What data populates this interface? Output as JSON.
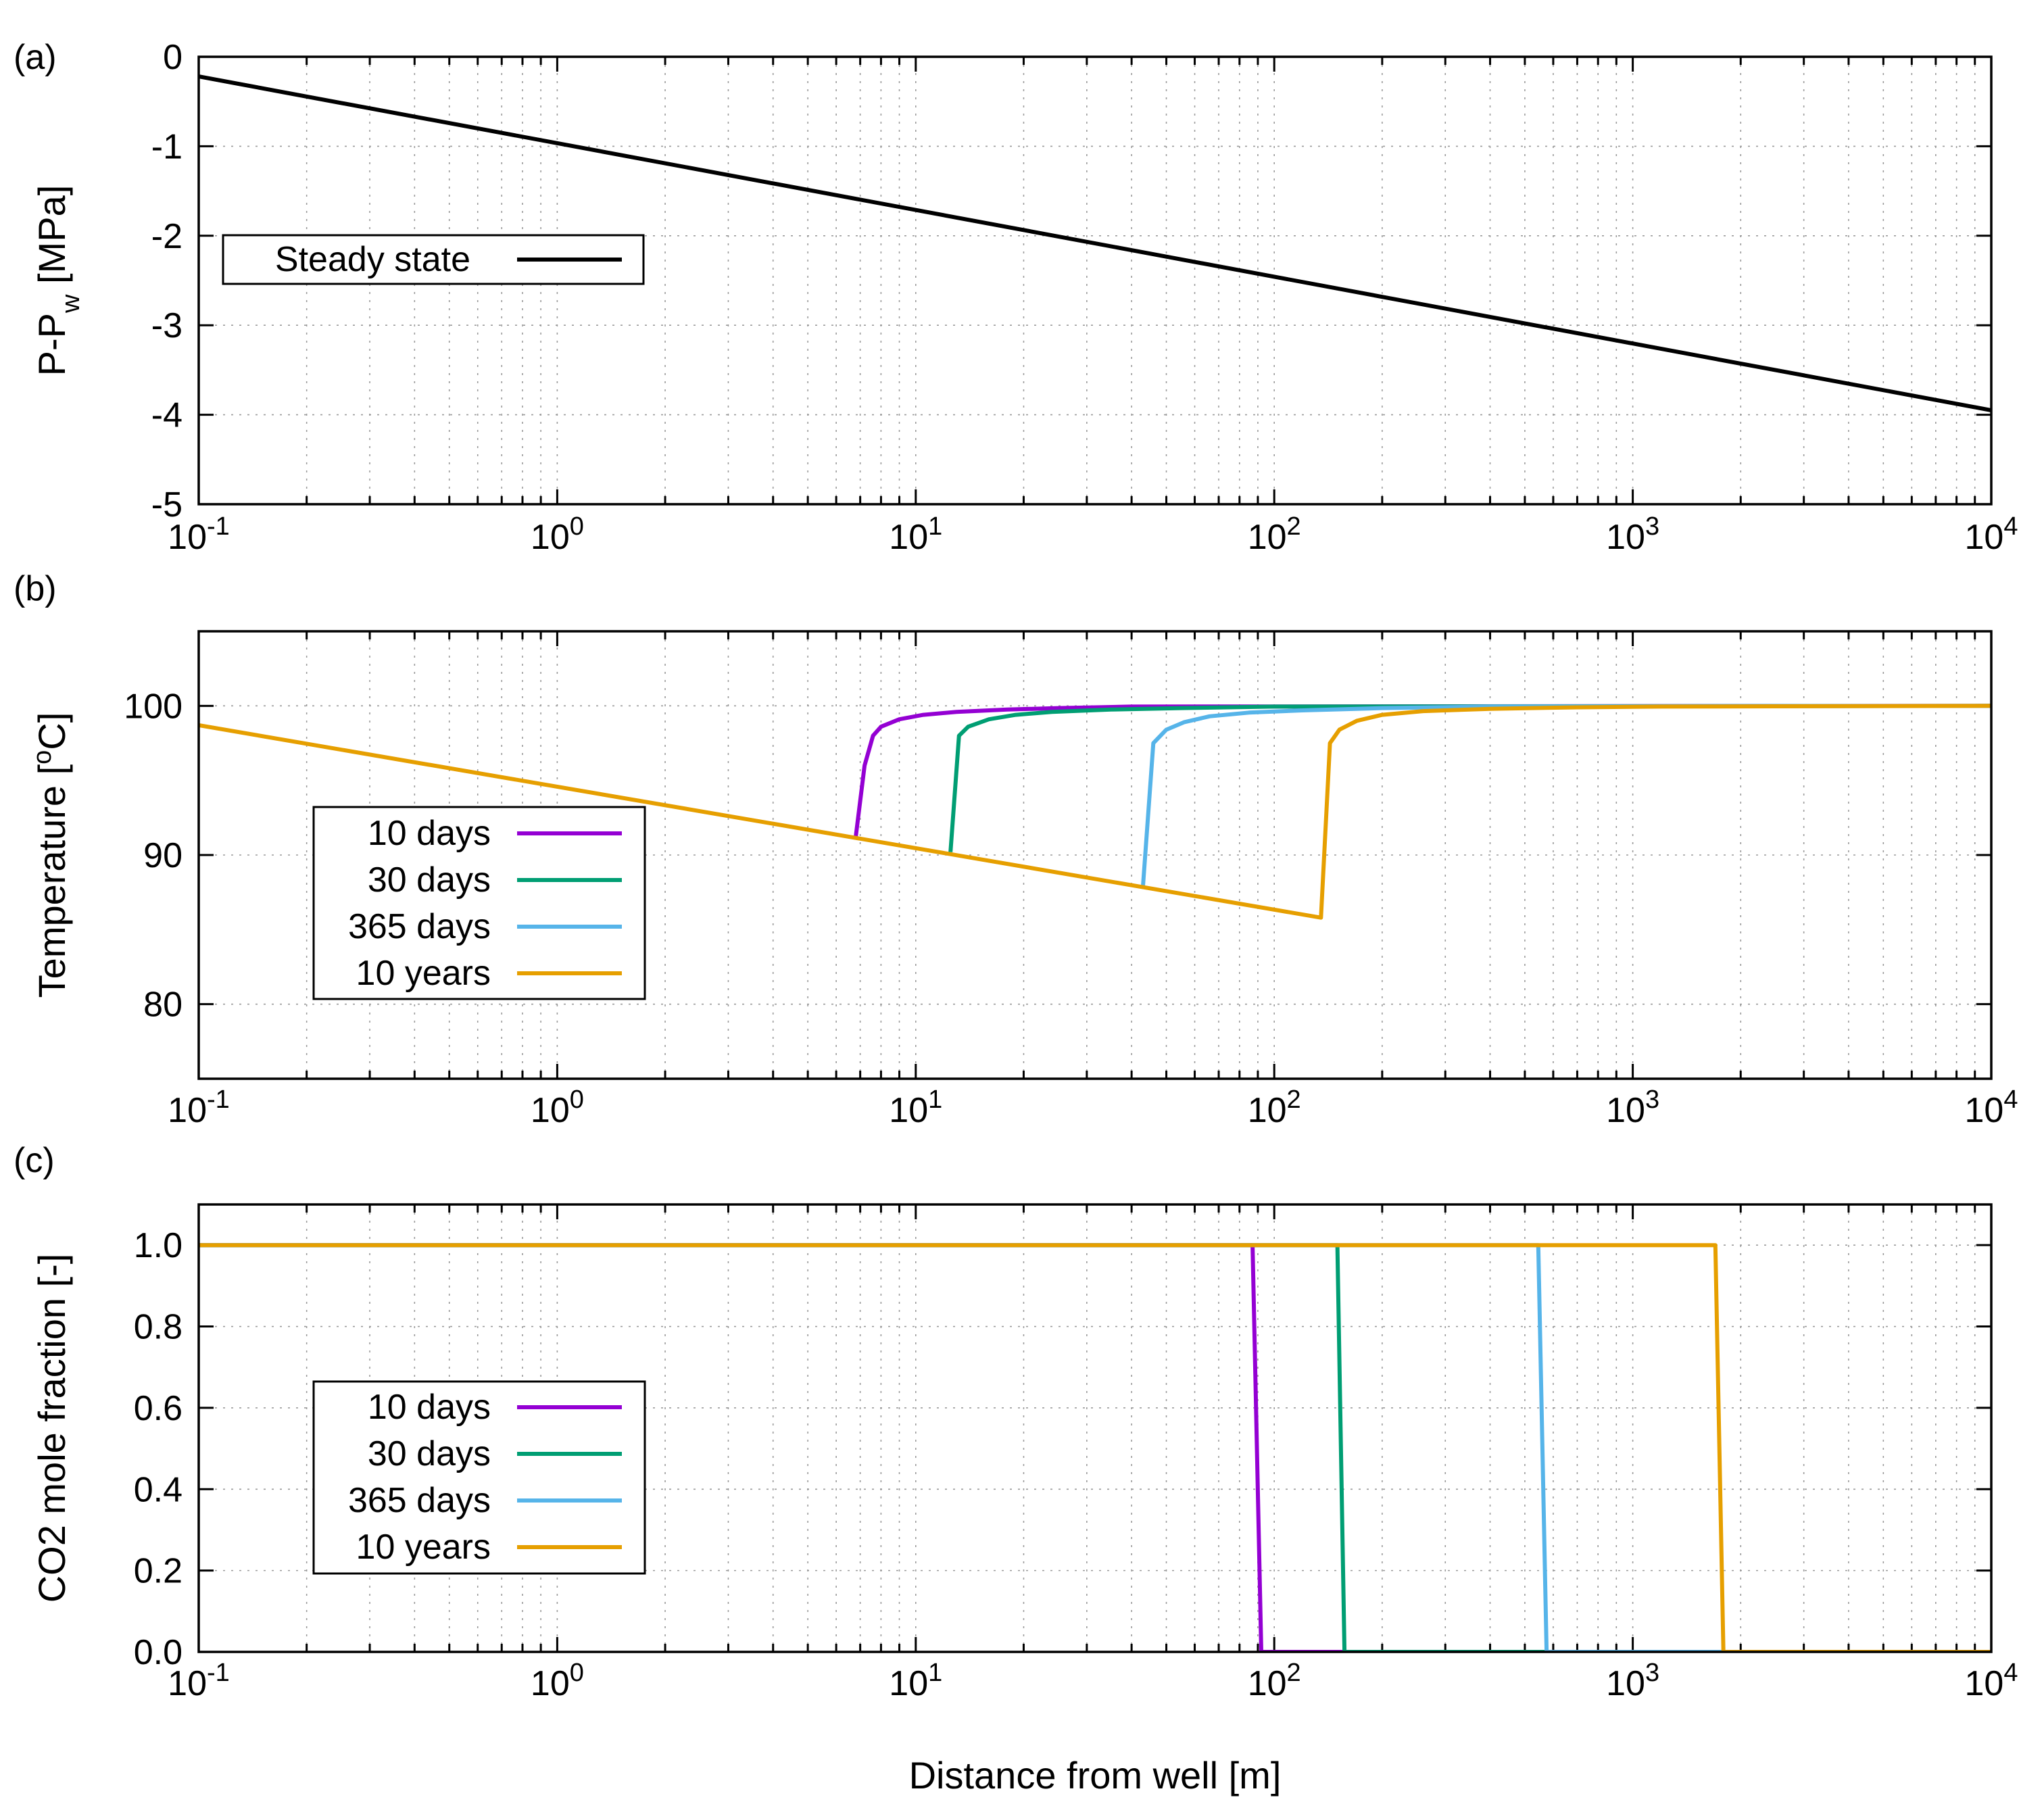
{
  "figure": {
    "xlabel": "Distance from well [m]"
  },
  "colors": {
    "steady": "#000000",
    "d10": "#9400d3",
    "d30": "#009e73",
    "d365": "#56b4e9",
    "y10": "#e69f00"
  },
  "chart_data": [
    {
      "panel": "(a)",
      "type": "line",
      "xscale": "log",
      "xlim": [
        0.1,
        10000
      ],
      "ylim": [
        -5,
        0
      ],
      "yticks": [
        0,
        -1,
        -2,
        -3,
        -4,
        -5
      ],
      "ytick_labels": [
        "0",
        "-1",
        "-2",
        "-3",
        "-4",
        "-5"
      ],
      "ylabel_main": "P-P",
      "ylabel_sub": "w",
      "ylabel_tail": " [MPa]",
      "grid": true,
      "legend_position": "upper-left",
      "series": [
        {
          "name": "Steady state",
          "color": "#000000",
          "x": [
            0.1,
            10000
          ],
          "y": [
            -0.22,
            -3.95
          ]
        }
      ]
    },
    {
      "panel": "(b)",
      "type": "line",
      "xscale": "log",
      "xlim": [
        0.1,
        10000
      ],
      "ylim": [
        75,
        105
      ],
      "yticks": [
        80,
        90,
        100
      ],
      "ytick_labels": [
        "80",
        "90",
        "100"
      ],
      "ylabel_main": "Temperature [",
      "ylabel_sup": "o",
      "ylabel_tail": "C]",
      "grid": true,
      "legend_position": "lower-left",
      "series": [
        {
          "name": "10  days",
          "color": "#9400d3",
          "x": [
            6.8,
            7.2,
            7.6,
            8.0,
            9.0,
            10.5,
            13,
            18,
            25,
            40,
            10000
          ],
          "y": [
            91.2,
            96.0,
            98.0,
            98.6,
            99.1,
            99.4,
            99.6,
            99.75,
            99.85,
            99.95,
            100
          ]
        },
        {
          "name": "30  days",
          "color": "#009e73",
          "x": [
            12.5,
            13.2,
            14.0,
            16,
            19,
            24,
            35,
            55,
            100,
            10000
          ],
          "y": [
            90.2,
            98.0,
            98.6,
            99.1,
            99.4,
            99.6,
            99.75,
            99.85,
            99.95,
            100
          ]
        },
        {
          "name": "365 days",
          "color": "#56b4e9",
          "x": [
            43,
            46,
            50,
            56,
            66,
            85,
            120,
            200,
            400,
            10000
          ],
          "y": [
            87.8,
            97.5,
            98.4,
            98.9,
            99.3,
            99.55,
            99.7,
            99.85,
            99.95,
            100
          ]
        },
        {
          "name": "10 years",
          "color": "#e69f00",
          "x": [
            0.1,
            135,
            143,
            152,
            170,
            200,
            260,
            400,
            700,
            1200,
            10000
          ],
          "y": [
            98.7,
            85.8,
            97.5,
            98.4,
            99.0,
            99.4,
            99.65,
            99.8,
            99.9,
            99.95,
            100
          ]
        }
      ]
    },
    {
      "panel": "(c)",
      "type": "line",
      "xscale": "log",
      "xlim": [
        0.1,
        10000
      ],
      "ylim": [
        0,
        1.1
      ],
      "yticks": [
        0,
        0.2,
        0.4,
        0.6,
        0.8,
        1.0
      ],
      "ytick_labels": [
        "0.0",
        "0.2",
        "0.4",
        "0.6",
        "0.8",
        "1.0"
      ],
      "ylabel_main": "CO2 mole fraction [-]",
      "grid": true,
      "legend_position": "lower-left",
      "series": [
        {
          "name": "10  days",
          "color": "#9400d3",
          "x": [
            0.1,
            87,
            92,
            10000
          ],
          "y": [
            1,
            1,
            0,
            0
          ]
        },
        {
          "name": "30  days",
          "color": "#009e73",
          "x": [
            0.1,
            150,
            157,
            10000
          ],
          "y": [
            1,
            1,
            0,
            0
          ]
        },
        {
          "name": "365 days",
          "color": "#56b4e9",
          "x": [
            0.1,
            545,
            575,
            10000
          ],
          "y": [
            1,
            1,
            0,
            0
          ]
        },
        {
          "name": "10 years",
          "color": "#e69f00",
          "x": [
            0.1,
            1700,
            1790,
            10000
          ],
          "y": [
            1,
            1,
            0,
            0
          ]
        }
      ]
    }
  ]
}
